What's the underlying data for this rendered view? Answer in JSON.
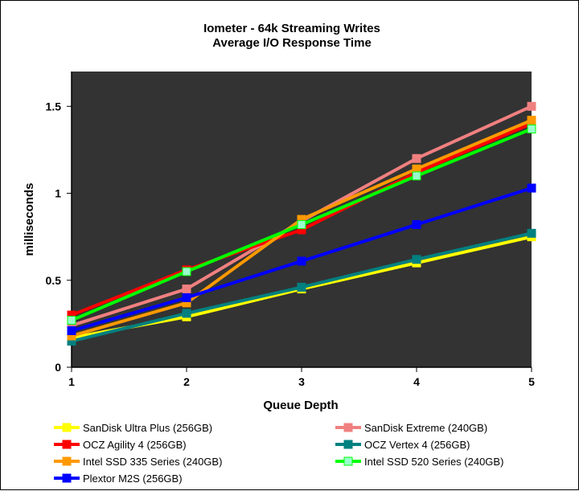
{
  "chart_data": {
    "type": "line",
    "title": "Iometer - 64k  Streaming Writes",
    "subtitle": "Average I/O Response  Time",
    "xlabel": "Queue Depth",
    "ylabel": "milliseconds",
    "x": [
      1,
      2,
      3,
      4,
      5
    ],
    "xlim": [
      1,
      5
    ],
    "ylim": [
      0,
      1.7
    ],
    "x_ticks": [
      "1",
      "2",
      "3",
      "4",
      "5"
    ],
    "y_ticks": [
      {
        "value": 0,
        "label": "0"
      },
      {
        "value": 0.5,
        "label": "0.5"
      },
      {
        "value": 1,
        "label": "1"
      },
      {
        "value": 1.5,
        "label": "1.5"
      }
    ],
    "grid": false,
    "plot_background": "#333333",
    "legend_position": "bottom",
    "series": [
      {
        "name": "SanDisk Ultra Plus (256GB)",
        "color": "#ffff00",
        "marker_color": "#ffff00",
        "values": [
          0.17,
          0.29,
          0.45,
          0.6,
          0.75
        ]
      },
      {
        "name": "SanDisk Extreme (240GB)",
        "color": "#f08080",
        "marker_color": "#f08080",
        "values": [
          0.24,
          0.45,
          0.84,
          1.2,
          1.5
        ]
      },
      {
        "name": "OCZ Agility 4 (256GB)",
        "color": "#ff0000",
        "marker_color": "#ff0000",
        "values": [
          0.3,
          0.56,
          0.79,
          1.12,
          1.4
        ]
      },
      {
        "name": "OCZ Vertex 4 (256GB)",
        "color": "#008080",
        "marker_color": "#008080",
        "values": [
          0.15,
          0.31,
          0.46,
          0.62,
          0.77
        ]
      },
      {
        "name": "Intel SSD 335 Series (240GB)",
        "color": "#ff9900",
        "marker_color": "#ff9900",
        "values": [
          0.18,
          0.37,
          0.85,
          1.14,
          1.42
        ]
      },
      {
        "name": "Intel SSD 520 Series (240GB)",
        "color": "#00ff00",
        "marker_color": "#99ffcc",
        "values": [
          0.27,
          0.55,
          0.82,
          1.1,
          1.37
        ]
      },
      {
        "name": "Plextor M2S (256GB)",
        "color": "#0000ff",
        "marker_color": "#0000ff",
        "values": [
          0.21,
          0.4,
          0.61,
          0.82,
          1.03
        ]
      }
    ]
  }
}
